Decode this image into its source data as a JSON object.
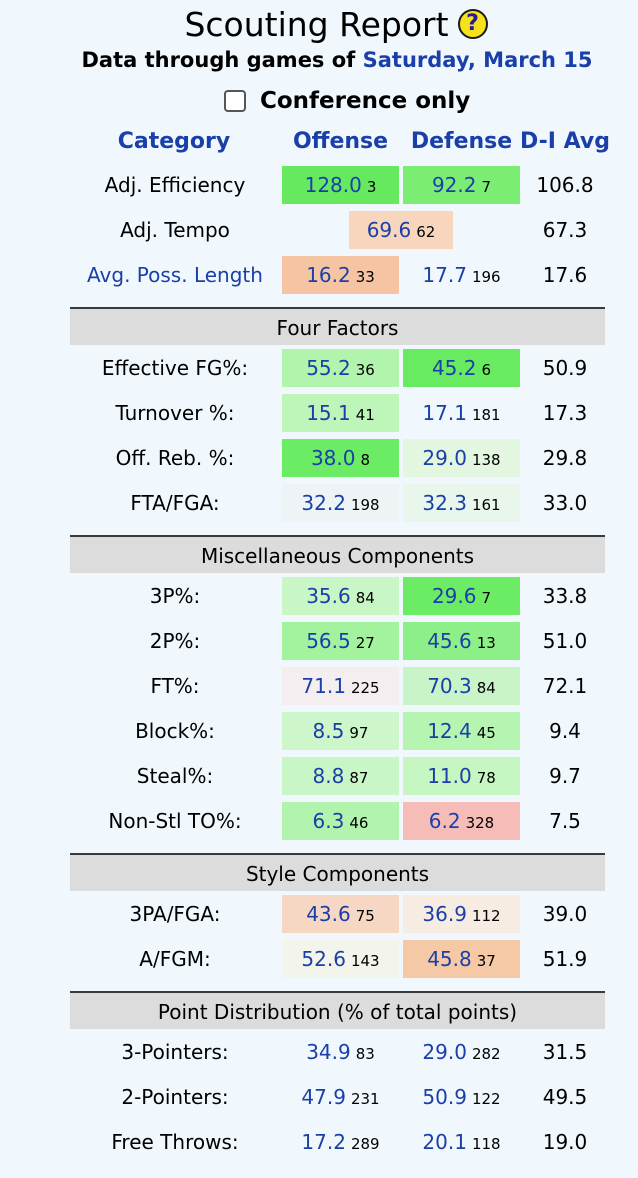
{
  "header": {
    "title": "Scouting Report",
    "help_icon": "?",
    "subtitle_prefix": "Data through games of",
    "subtitle_date": "Saturday, March 15",
    "conference_label": "Conference only",
    "conference_checked": false
  },
  "columns": {
    "category": "Category",
    "offense": "Offense",
    "defense": "Defense",
    "avg": "D-I Avg"
  },
  "main_rows": [
    {
      "label": "Adj. Efficiency",
      "offense": {
        "value": "128.0",
        "rank": "3",
        "bg": "#66e95f"
      },
      "defense": {
        "value": "92.2",
        "rank": "7",
        "bg": "#7ced73"
      },
      "avg": "106.8"
    },
    {
      "label": "Adj. Tempo",
      "tempo": {
        "value": "69.6",
        "rank": "62",
        "bg": "#f7d6bd"
      },
      "avg": "67.3"
    },
    {
      "label": "Avg. Poss. Length",
      "link": true,
      "offense": {
        "value": "16.2",
        "rank": "33",
        "bg": "#f5c4a2"
      },
      "defense": {
        "value": "17.7",
        "rank": "196",
        "bg": ""
      },
      "avg": "17.6"
    }
  ],
  "sections": [
    {
      "title": "Four Factors",
      "rows": [
        {
          "label": "Effective FG%:",
          "offense": {
            "value": "55.2",
            "rank": "36",
            "bg": "#b1f4ac"
          },
          "defense": {
            "value": "45.2",
            "rank": "6",
            "bg": "#68ea61"
          },
          "avg": "50.9"
        },
        {
          "label": "Turnover %:",
          "offense": {
            "value": "15.1",
            "rank": "41",
            "bg": "#bdf6b8"
          },
          "defense": {
            "value": "17.1",
            "rank": "181",
            "bg": ""
          },
          "avg": "17.3"
        },
        {
          "label": "Off. Reb. %:",
          "offense": {
            "value": "38.0",
            "rank": "8",
            "bg": "#6ceb65"
          },
          "defense": {
            "value": "29.0",
            "rank": "138",
            "bg": "#e2f6e0"
          },
          "avg": "29.8"
        },
        {
          "label": "FTA/FGA:",
          "offense": {
            "value": "32.2",
            "rank": "198",
            "bg": "#eef4f5"
          },
          "defense": {
            "value": "32.3",
            "rank": "161",
            "bg": "#e8f6ec"
          },
          "avg": "33.0"
        }
      ]
    },
    {
      "title": "Miscellaneous Components",
      "rows": [
        {
          "label": "3P%:",
          "offense": {
            "value": "35.6",
            "rank": "84",
            "bg": "#c8f6c4"
          },
          "defense": {
            "value": "29.6",
            "rank": "7",
            "bg": "#6ceb65"
          },
          "avg": "33.8"
        },
        {
          "label": "2P%:",
          "offense": {
            "value": "56.5",
            "rank": "27",
            "bg": "#a3f29d"
          },
          "defense": {
            "value": "45.6",
            "rank": "13",
            "bg": "#8def87"
          },
          "avg": "51.0"
        },
        {
          "label": "FT%:",
          "offense": {
            "value": "71.1",
            "rank": "225",
            "bg": "#f4eef0"
          },
          "defense": {
            "value": "70.3",
            "rank": "84",
            "bg": "#c8f4c8"
          },
          "avg": "72.1"
        },
        {
          "label": "Block%:",
          "offense": {
            "value": "8.5",
            "rank": "97",
            "bg": "#cdf6ca"
          },
          "defense": {
            "value": "12.4",
            "rank": "45",
            "bg": "#b6f5b1"
          },
          "avg": "9.4"
        },
        {
          "label": "Steal%:",
          "offense": {
            "value": "8.8",
            "rank": "87",
            "bg": "#c9f6c6"
          },
          "defense": {
            "value": "11.0",
            "rank": "78",
            "bg": "#c6f6c2"
          },
          "avg": "9.7"
        },
        {
          "label": "Non-Stl TO%:",
          "offense": {
            "value": "6.3",
            "rank": "46",
            "bg": "#b2f4ad"
          },
          "defense": {
            "value": "6.2",
            "rank": "328",
            "bg": "#f5bcb8"
          },
          "avg": "7.5"
        }
      ]
    },
    {
      "title": "Style Components",
      "rows": [
        {
          "label": "3PA/FGA:",
          "offense": {
            "value": "43.6",
            "rank": "75",
            "bg": "#f5d7c4"
          },
          "defense": {
            "value": "36.9",
            "rank": "112",
            "bg": "#f6ece2"
          },
          "avg": "39.0"
        },
        {
          "label": "A/FGM:",
          "offense": {
            "value": "52.6",
            "rank": "143",
            "bg": "#f3f5ec"
          },
          "defense": {
            "value": "45.8",
            "rank": "37",
            "bg": "#f5c8a6"
          },
          "avg": "51.9"
        }
      ]
    },
    {
      "title": "Point Distribution (% of total points)",
      "rows": [
        {
          "label": "3-Pointers:",
          "offense": {
            "value": "34.9",
            "rank": "83",
            "bg": ""
          },
          "defense": {
            "value": "29.0",
            "rank": "282",
            "bg": ""
          },
          "avg": "31.5"
        },
        {
          "label": "2-Pointers:",
          "offense": {
            "value": "47.9",
            "rank": "231",
            "bg": ""
          },
          "defense": {
            "value": "50.9",
            "rank": "122",
            "bg": ""
          },
          "avg": "49.5"
        },
        {
          "label": "Free Throws:",
          "offense": {
            "value": "17.2",
            "rank": "289",
            "bg": ""
          },
          "defense": {
            "value": "20.1",
            "rank": "118",
            "bg": ""
          },
          "avg": "19.0"
        }
      ]
    }
  ]
}
